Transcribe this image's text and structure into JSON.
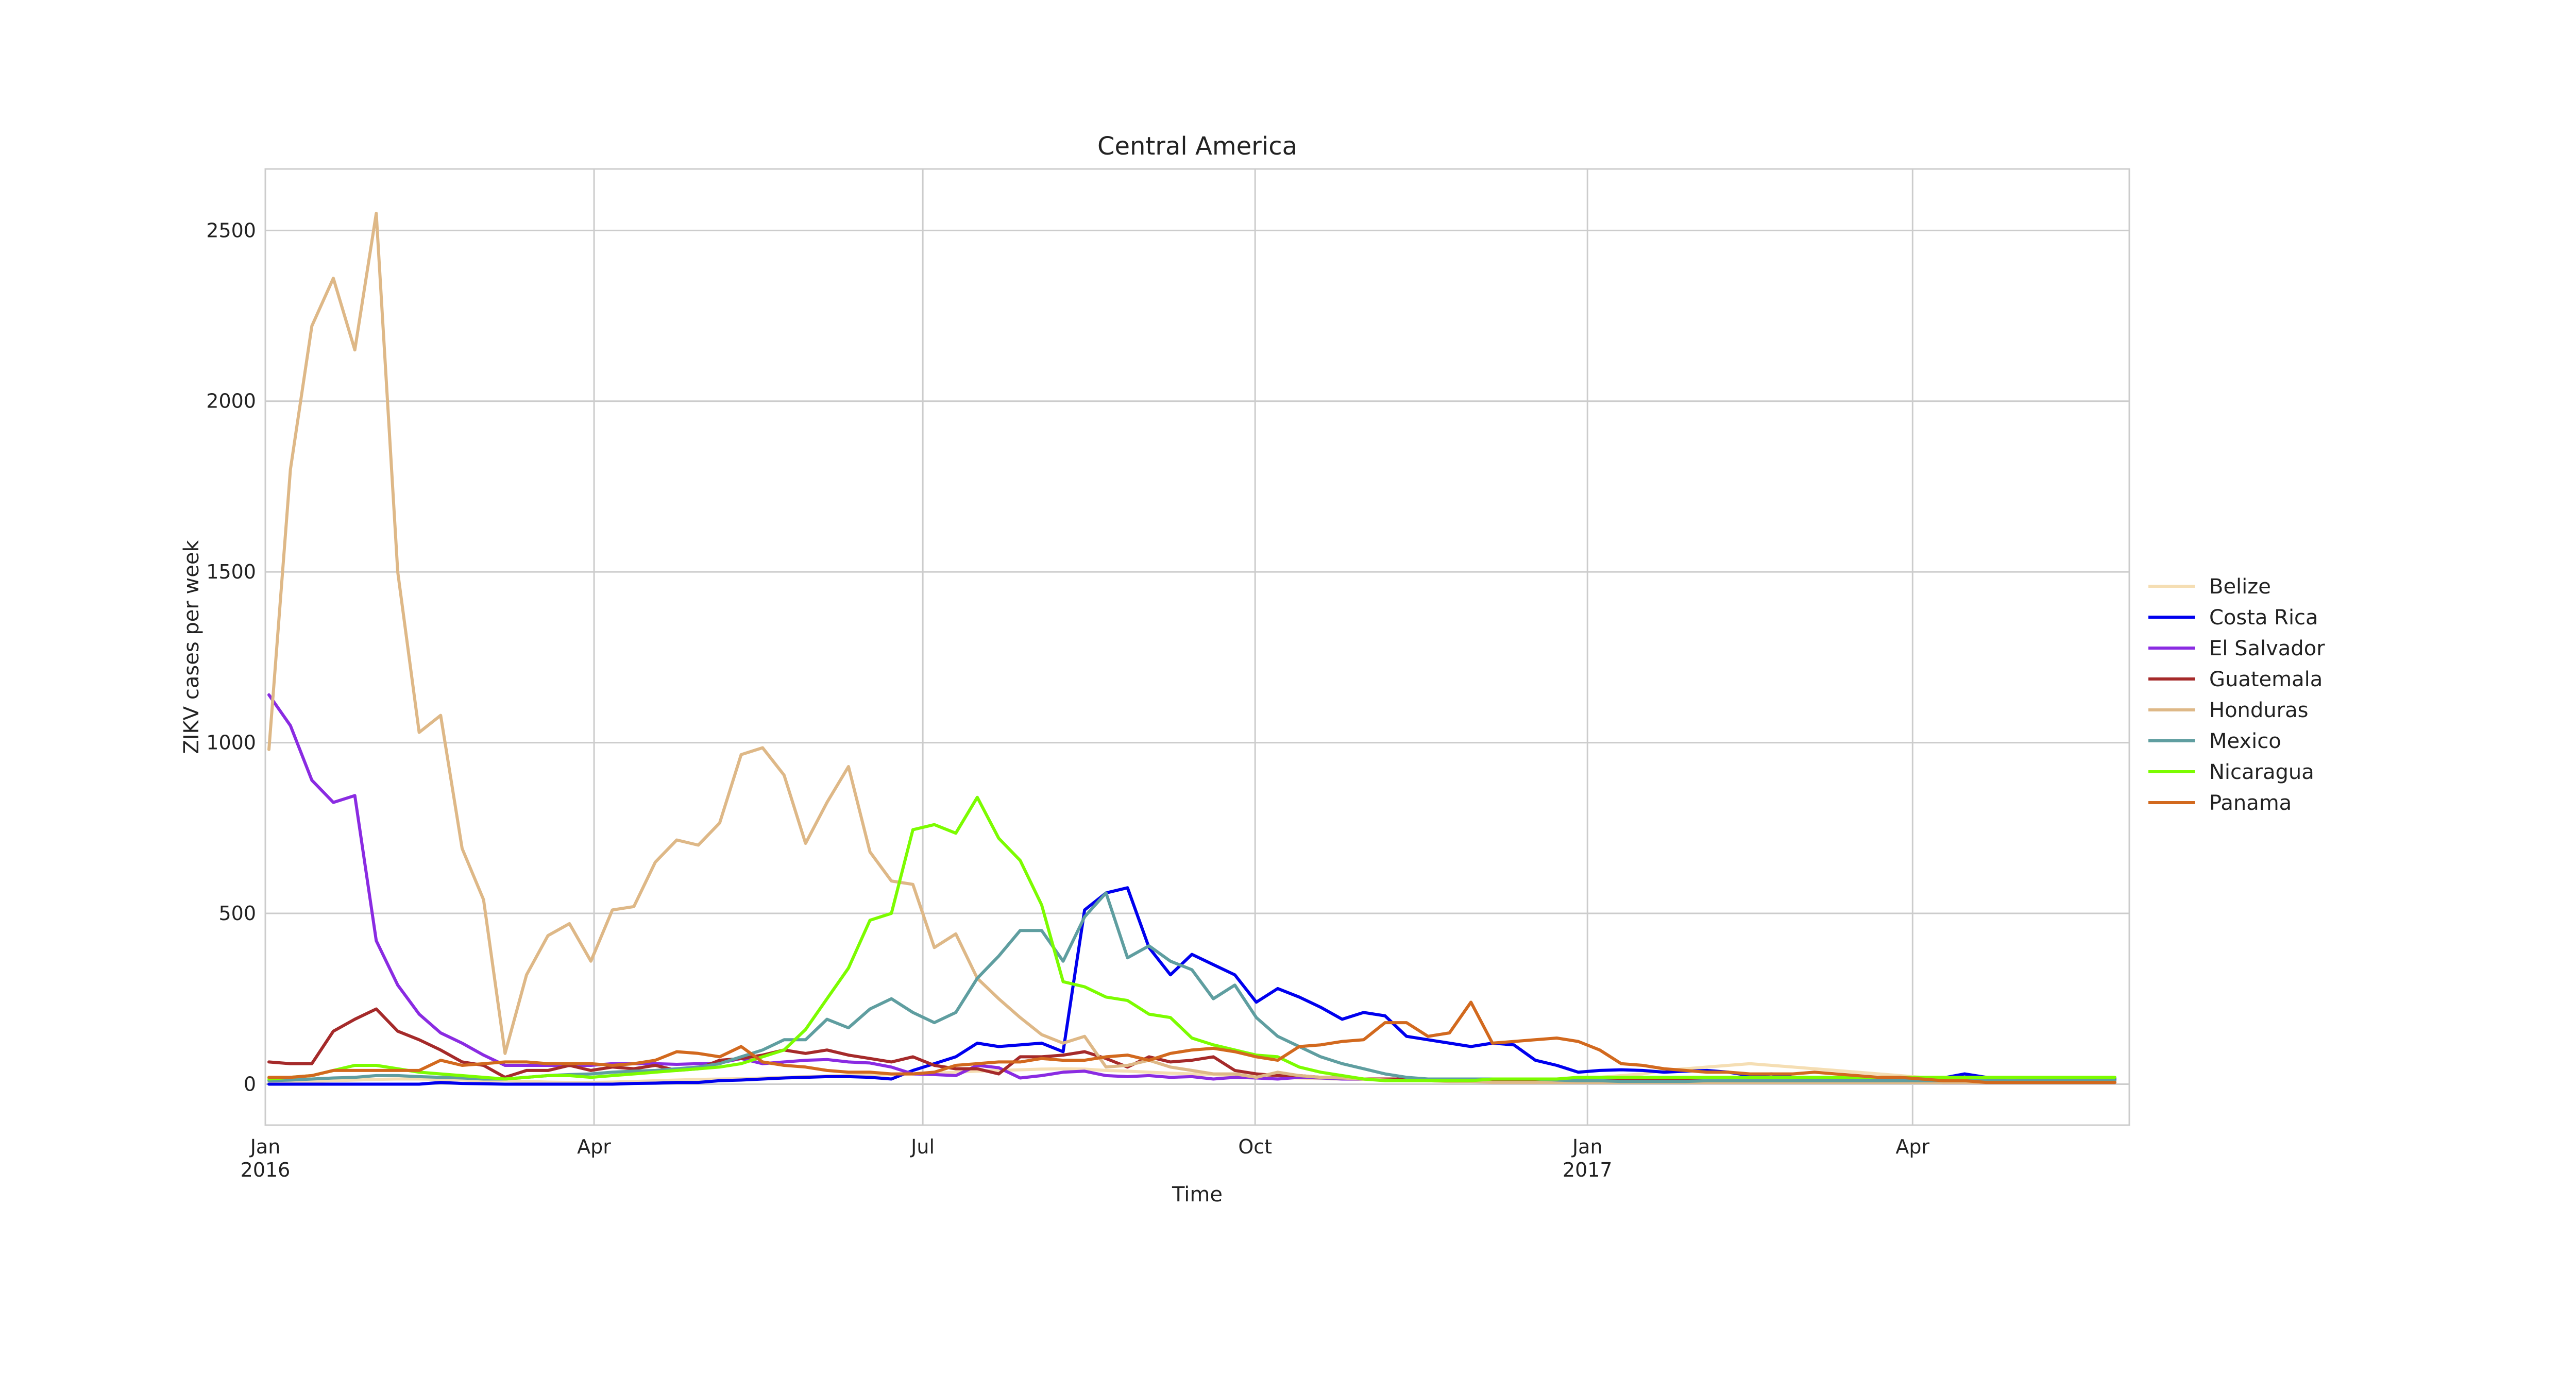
{
  "chart_data": {
    "type": "line",
    "title": "Central America",
    "xlabel": "Time",
    "ylabel": "ZIKV cases per week",
    "x_start": "2016-01-02",
    "x_end": "2017-05-27",
    "xlim": [
      "2016-01-01",
      "2017-05-31"
    ],
    "ylim": [
      -120,
      2680
    ],
    "grid": true,
    "legend_position": "right",
    "x_ticks": [
      {
        "date": "2016-01-01",
        "label": "Jan",
        "sublabel": "2016"
      },
      {
        "date": "2016-04-01",
        "label": "Apr",
        "sublabel": ""
      },
      {
        "date": "2016-07-01",
        "label": "Jul",
        "sublabel": ""
      },
      {
        "date": "2016-10-01",
        "label": "Oct",
        "sublabel": ""
      },
      {
        "date": "2017-01-01",
        "label": "Jan",
        "sublabel": "2017"
      },
      {
        "date": "2017-04-01",
        "label": "Apr",
        "sublabel": ""
      }
    ],
    "y_ticks": [
      {
        "value": 0,
        "label": "0"
      },
      {
        "value": 500,
        "label": "500"
      },
      {
        "value": 1000,
        "label": "1000"
      },
      {
        "value": 1500,
        "label": "1500"
      },
      {
        "value": 2000,
        "label": "2000"
      },
      {
        "value": 2500,
        "label": "2500"
      }
    ],
    "series": [
      {
        "name": "Belize",
        "color": "#f5deb3",
        "values": [
          5,
          6,
          8,
          10,
          12,
          14,
          15,
          15,
          14,
          12,
          10,
          10,
          8,
          6,
          5,
          5,
          6,
          8,
          10,
          12,
          14,
          15,
          16,
          18,
          20,
          22,
          24,
          25,
          26,
          28,
          30,
          32,
          35,
          38,
          40,
          42,
          44,
          45,
          44,
          40,
          38,
          35,
          32,
          30,
          28,
          25,
          22,
          20,
          18,
          16,
          15,
          14,
          12,
          10,
          10,
          8,
          8,
          8,
          10,
          12,
          15,
          18,
          20,
          25,
          30,
          40,
          45,
          50,
          55,
          60,
          55,
          50,
          45,
          40,
          35,
          30,
          25,
          20,
          18,
          15,
          12,
          10,
          10,
          8,
          8,
          6,
          5
        ]
      },
      {
        "name": "Costa Rica",
        "color": "#0000ee",
        "values": [
          0,
          0,
          0,
          0,
          0,
          0,
          0,
          0,
          5,
          2,
          1,
          0,
          0,
          0,
          0,
          0,
          0,
          2,
          3,
          5,
          5,
          10,
          12,
          15,
          18,
          20,
          22,
          22,
          20,
          15,
          40,
          60,
          80,
          120,
          110,
          115,
          120,
          95,
          510,
          560,
          575,
          400,
          320,
          380,
          350,
          320,
          240,
          280,
          255,
          225,
          190,
          210,
          200,
          140,
          130,
          120,
          110,
          120,
          115,
          70,
          55,
          35,
          40,
          42,
          40,
          35,
          38,
          40,
          35,
          25,
          30,
          20,
          18,
          15,
          20,
          18,
          20,
          15,
          18,
          30,
          20,
          10,
          12,
          15,
          15,
          14,
          15
        ]
      },
      {
        "name": "El Salvador",
        "color": "#8a2be2",
        "values": [
          1140,
          1050,
          890,
          825,
          845,
          420,
          290,
          205,
          150,
          120,
          85,
          55,
          55,
          55,
          55,
          55,
          60,
          60,
          60,
          58,
          60,
          62,
          75,
          60,
          65,
          70,
          72,
          65,
          62,
          50,
          30,
          28,
          25,
          55,
          48,
          18,
          25,
          35,
          38,
          25,
          22,
          25,
          20,
          22,
          15,
          20,
          18,
          15,
          20,
          18,
          15,
          15,
          12,
          12,
          10,
          10,
          10,
          10,
          10,
          10,
          10,
          10,
          10,
          10,
          10,
          8,
          8,
          8,
          10,
          10,
          10,
          8,
          8,
          8,
          8,
          8,
          8,
          8,
          5,
          5,
          5,
          5,
          5,
          5,
          5,
          5,
          5
        ]
      },
      {
        "name": "Guatemala",
        "color": "#a52a2a",
        "values": [
          65,
          60,
          60,
          155,
          190,
          220,
          155,
          130,
          100,
          65,
          55,
          20,
          40,
          40,
          55,
          40,
          50,
          45,
          55,
          40,
          45,
          70,
          75,
          85,
          100,
          90,
          100,
          85,
          75,
          65,
          80,
          55,
          45,
          45,
          30,
          80,
          80,
          85,
          95,
          75,
          50,
          80,
          65,
          70,
          80,
          40,
          30,
          25,
          25,
          20,
          20,
          15,
          15,
          15,
          10,
          10,
          10,
          10,
          10,
          10,
          10,
          10,
          10,
          10,
          10,
          10,
          10,
          10,
          10,
          10,
          10,
          10,
          10,
          10,
          10,
          10,
          10,
          10,
          10,
          10,
          10,
          10,
          10,
          10,
          10,
          10,
          10
        ]
      },
      {
        "name": "Honduras",
        "color": "#deb887",
        "values": [
          980,
          1800,
          2220,
          2360,
          2150,
          2550,
          1500,
          1030,
          1080,
          690,
          540,
          90,
          320,
          435,
          470,
          360,
          510,
          520,
          650,
          715,
          700,
          765,
          965,
          985,
          905,
          705,
          825,
          930,
          680,
          595,
          585,
          400,
          440,
          310,
          250,
          195,
          145,
          120,
          140,
          50,
          55,
          70,
          50,
          40,
          30,
          30,
          20,
          35,
          25,
          20,
          18,
          15,
          12,
          10,
          10,
          8,
          8,
          5,
          5,
          5,
          5,
          5,
          5,
          5,
          5,
          5,
          5,
          5,
          5,
          5,
          5,
          5,
          5,
          5,
          5,
          5,
          5,
          5,
          5,
          5,
          5,
          5,
          5,
          5,
          5,
          5,
          5
        ]
      },
      {
        "name": "Mexico",
        "color": "#5f9ea0",
        "values": [
          10,
          12,
          15,
          18,
          20,
          25,
          25,
          22,
          20,
          18,
          15,
          15,
          20,
          25,
          28,
          30,
          35,
          38,
          40,
          45,
          50,
          60,
          80,
          100,
          130,
          130,
          190,
          165,
          220,
          250,
          210,
          180,
          210,
          310,
          375,
          450,
          450,
          360,
          490,
          560,
          370,
          405,
          360,
          335,
          250,
          290,
          195,
          140,
          110,
          80,
          60,
          45,
          30,
          20,
          15,
          15,
          15,
          15,
          15,
          15,
          12,
          10,
          10,
          8,
          8,
          8,
          8,
          10,
          10,
          10,
          10,
          10,
          10,
          10,
          10,
          10,
          10,
          10,
          10,
          10,
          10,
          10,
          10,
          10,
          10,
          10,
          10
        ]
      },
      {
        "name": "Nicaragua",
        "color": "#7cfc00",
        "values": [
          15,
          20,
          25,
          40,
          55,
          55,
          45,
          35,
          30,
          25,
          20,
          15,
          20,
          25,
          25,
          20,
          25,
          30,
          35,
          40,
          45,
          50,
          60,
          80,
          100,
          160,
          250,
          340,
          480,
          500,
          745,
          760,
          735,
          840,
          720,
          655,
          525,
          300,
          285,
          255,
          245,
          205,
          195,
          135,
          115,
          100,
          85,
          80,
          50,
          35,
          25,
          15,
          10,
          10,
          10,
          10,
          10,
          15,
          15,
          15,
          15,
          20,
          20,
          20,
          20,
          20,
          20,
          20,
          20,
          20,
          20,
          20,
          20,
          20,
          20,
          20,
          20,
          20,
          20,
          20,
          20,
          20,
          20,
          20,
          20,
          20,
          20
        ]
      },
      {
        "name": "Panama",
        "color": "#d2691e",
        "values": [
          20,
          20,
          25,
          40,
          40,
          40,
          40,
          40,
          70,
          55,
          60,
          65,
          65,
          60,
          60,
          60,
          55,
          60,
          70,
          95,
          90,
          80,
          110,
          65,
          55,
          50,
          40,
          35,
          35,
          30,
          30,
          35,
          55,
          60,
          65,
          65,
          75,
          70,
          70,
          80,
          85,
          70,
          90,
          100,
          105,
          95,
          80,
          70,
          110,
          115,
          125,
          130,
          180,
          180,
          140,
          150,
          240,
          120,
          125,
          130,
          135,
          125,
          100,
          60,
          55,
          45,
          40,
          35,
          35,
          30,
          30,
          30,
          35,
          30,
          25,
          20,
          20,
          15,
          10,
          10,
          5,
          5,
          5,
          5,
          5,
          5,
          5
        ]
      }
    ]
  }
}
